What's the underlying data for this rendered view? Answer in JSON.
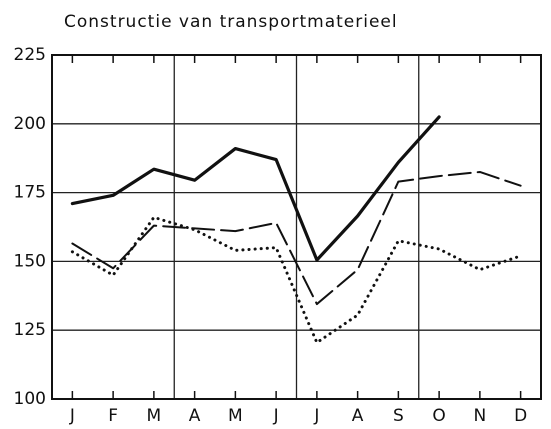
{
  "chart_data": {
    "type": "line",
    "title": "Constructie van transportmaterieel",
    "categories": [
      "J",
      "F",
      "M",
      "A",
      "M",
      "J",
      "J",
      "A",
      "S",
      "O",
      "N",
      "D"
    ],
    "series": [
      {
        "color": "#111111",
        "dash": "solid",
        "values": [
          171,
          174,
          183.5,
          179.5,
          191,
          187,
          150.5,
          166.5,
          186,
          202.5,
          null,
          null
        ]
      },
      {
        "color": "#111111",
        "dash": "dashed",
        "values": [
          156.5,
          147.5,
          163,
          162,
          161,
          164,
          134.5,
          147,
          179,
          181,
          182.5,
          177.5
        ]
      },
      {
        "color": "#111111",
        "dash": "dotted",
        "values": [
          153.5,
          145,
          166,
          161.5,
          154,
          155,
          120.5,
          130.5,
          157.5,
          154.5,
          147,
          152
        ]
      }
    ],
    "ylim": [
      100,
      225
    ],
    "yticks": [
      100,
      125,
      150,
      175,
      200,
      225
    ],
    "grid": true
  }
}
